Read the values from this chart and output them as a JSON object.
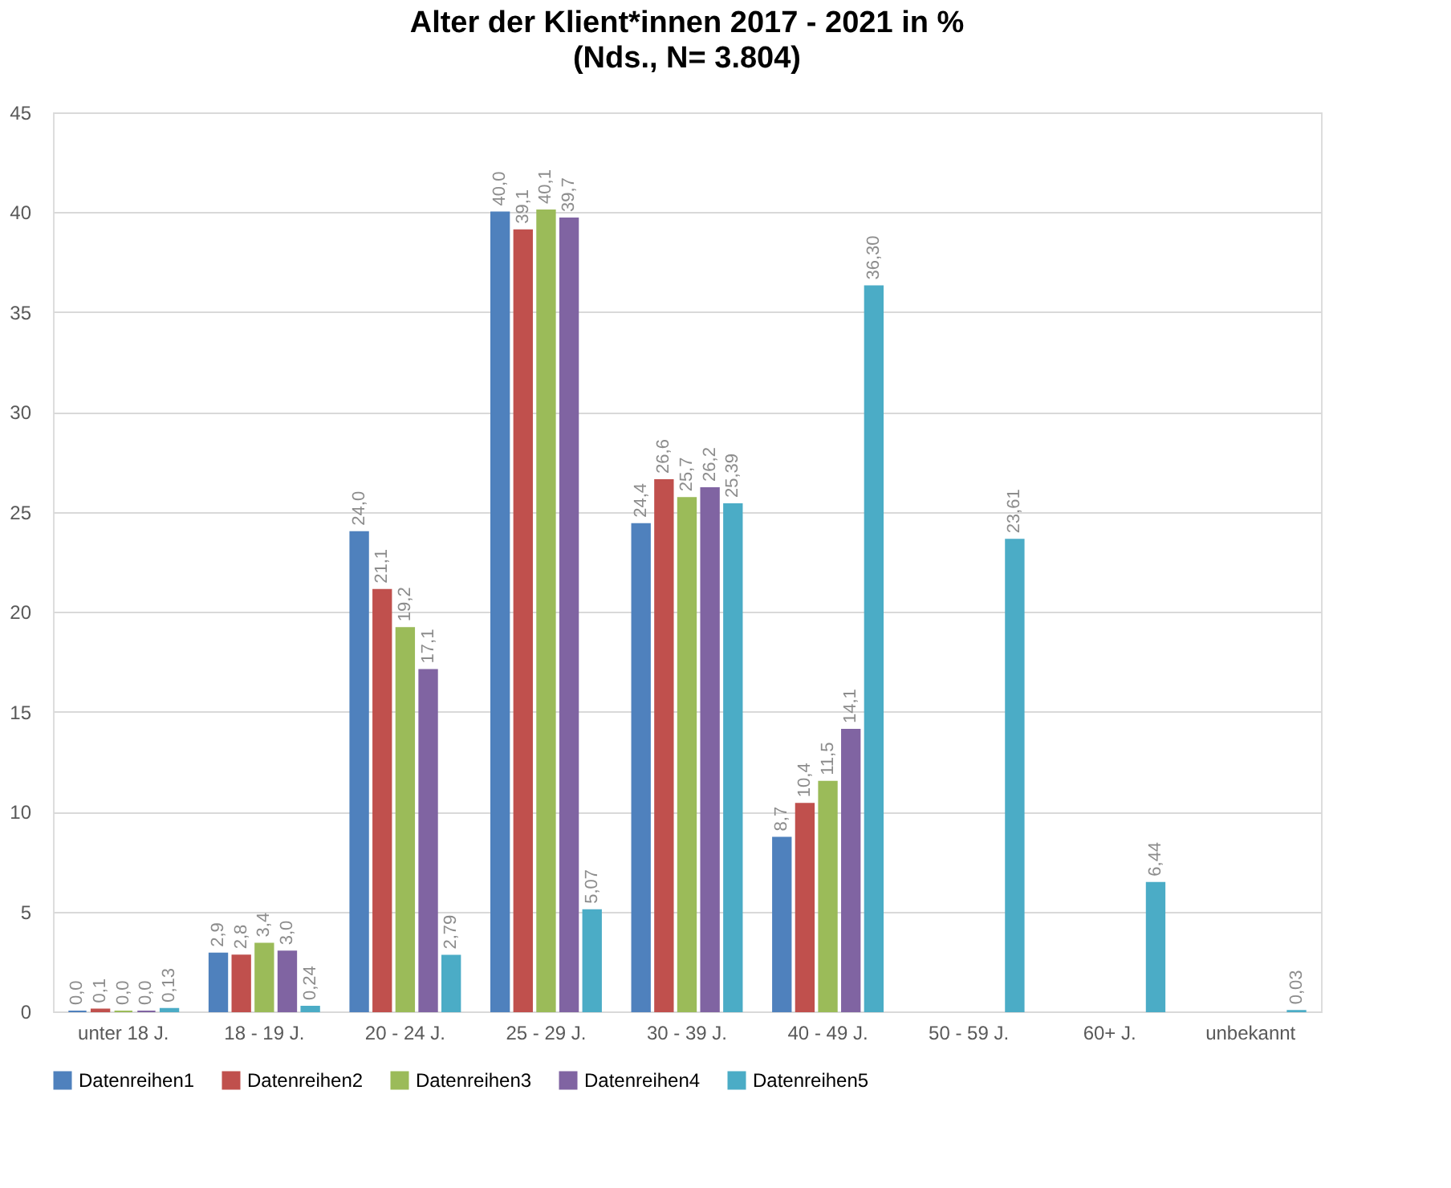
{
  "chart_data": {
    "type": "bar",
    "title": "Alter der Klient*innen 2017 - 2021 in %",
    "subtitle": "(Nds., N= 3.804)",
    "categories": [
      "unter 18 J.",
      "18 - 19 J.",
      "20 - 24 J.",
      "25 - 29 J.",
      "30 - 39 J.",
      "40 - 49 J.",
      "50 - 59 J.",
      "60+ J.",
      "unbekannt"
    ],
    "series": [
      {
        "name": "Datenreihen1",
        "color": "#4f81bd",
        "values": [
          0.0,
          2.9,
          24.0,
          40.0,
          24.4,
          8.7,
          null,
          null,
          null
        ],
        "value_labels": [
          "0,0",
          "2,9",
          "24,0",
          "40,0",
          "24,4",
          "8,7",
          null,
          null,
          null
        ]
      },
      {
        "name": "Datenreihen2",
        "color": "#c0504d",
        "values": [
          0.1,
          2.8,
          21.1,
          39.1,
          26.6,
          10.4,
          null,
          null,
          null
        ],
        "value_labels": [
          "0,1",
          "2,8",
          "21,1",
          "39,1",
          "26,6",
          "10,4",
          null,
          null,
          null
        ]
      },
      {
        "name": "Datenreihen3",
        "color": "#9bbb59",
        "values": [
          0.0,
          3.4,
          19.2,
          40.1,
          25.7,
          11.5,
          null,
          null,
          null
        ],
        "value_labels": [
          "0,0",
          "3,4",
          "19,2",
          "40,1",
          "25,7",
          "11,5",
          null,
          null,
          null
        ]
      },
      {
        "name": "Datenreihen4",
        "color": "#8064a2",
        "values": [
          0.0,
          3.0,
          17.1,
          39.7,
          26.2,
          14.1,
          null,
          null,
          null
        ],
        "value_labels": [
          "0,0",
          "3,0",
          "17,1",
          "39,7",
          "26,2",
          "14,1",
          null,
          null,
          null
        ]
      },
      {
        "name": "Datenreihen5",
        "color": "#4bacc6",
        "values": [
          0.13,
          0.24,
          2.79,
          5.07,
          25.39,
          36.3,
          23.61,
          6.44,
          0.03
        ],
        "value_labels": [
          "0,13",
          "0,24",
          "2,79",
          "5,07",
          "25,39",
          "36,30",
          "23,61",
          "6,44",
          "0,03"
        ]
      }
    ],
    "ylim": [
      0,
      45
    ],
    "yticks": [
      0,
      5,
      10,
      15,
      20,
      25,
      30,
      35,
      40,
      45
    ],
    "grid": "y",
    "legend": "bottom"
  }
}
